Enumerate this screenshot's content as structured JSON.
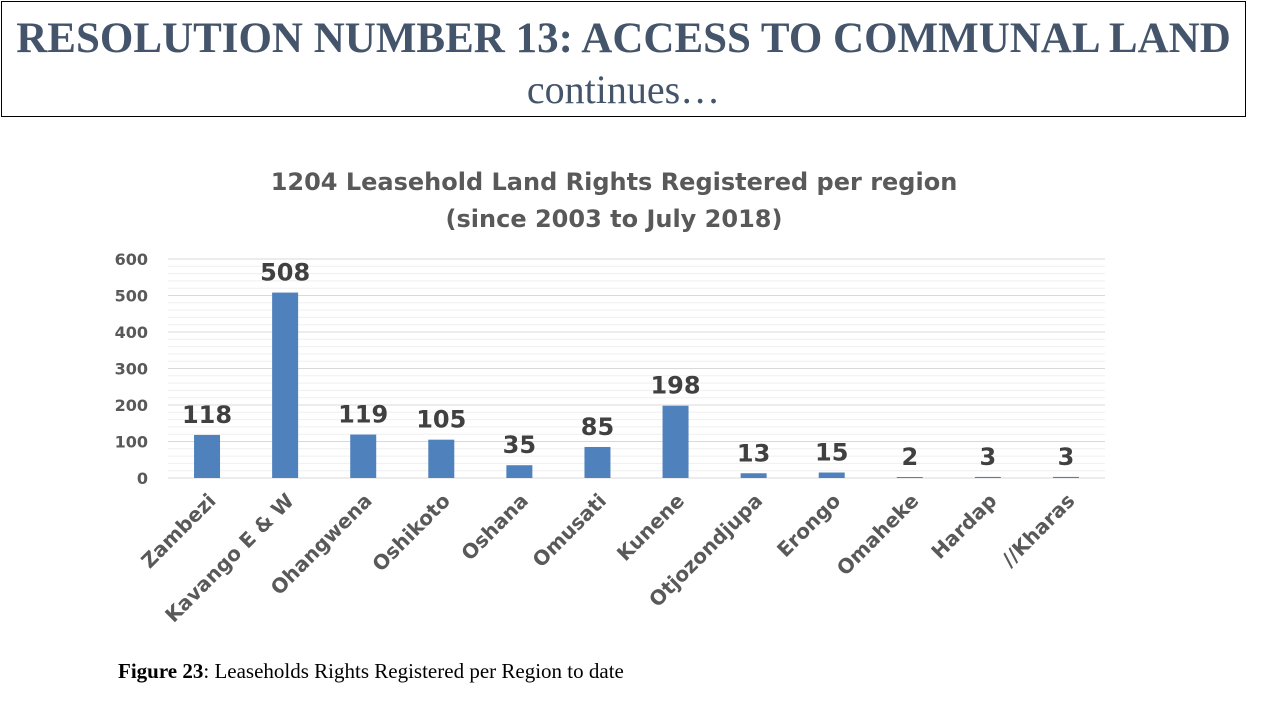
{
  "slide": {
    "title": "RESOLUTION NUMBER 13: ACCESS TO COMMUNAL LAND",
    "subtitle": "continues…"
  },
  "caption": {
    "label": "Figure 23",
    "text": ": Leaseholds Rights Registered per Region to date"
  },
  "colors": {
    "bar": "#4f81bd",
    "text": "#595959",
    "label": "#404040",
    "title": "#44546a"
  },
  "chart_data": {
    "type": "bar",
    "title_line1": "1204 Leasehold Land Rights Registered per region",
    "title_line2": "(since 2003 to July 2018)",
    "categories": [
      "Zambezi",
      "Kavango E & W",
      "Ohangwena",
      "Oshikoto",
      "Oshana",
      "Omusati",
      "Kunene",
      "Otjozondjupa",
      "Erongo",
      "Omaheke",
      "Hardap",
      "//Kharas"
    ],
    "values": [
      118,
      508,
      119,
      105,
      35,
      85,
      198,
      13,
      15,
      2,
      3,
      3
    ],
    "ylim": [
      0,
      600
    ],
    "yticks": [
      0,
      100,
      200,
      300,
      400,
      500,
      600
    ],
    "xlabel": "",
    "ylabel": "",
    "grid": true,
    "legend": "none"
  }
}
